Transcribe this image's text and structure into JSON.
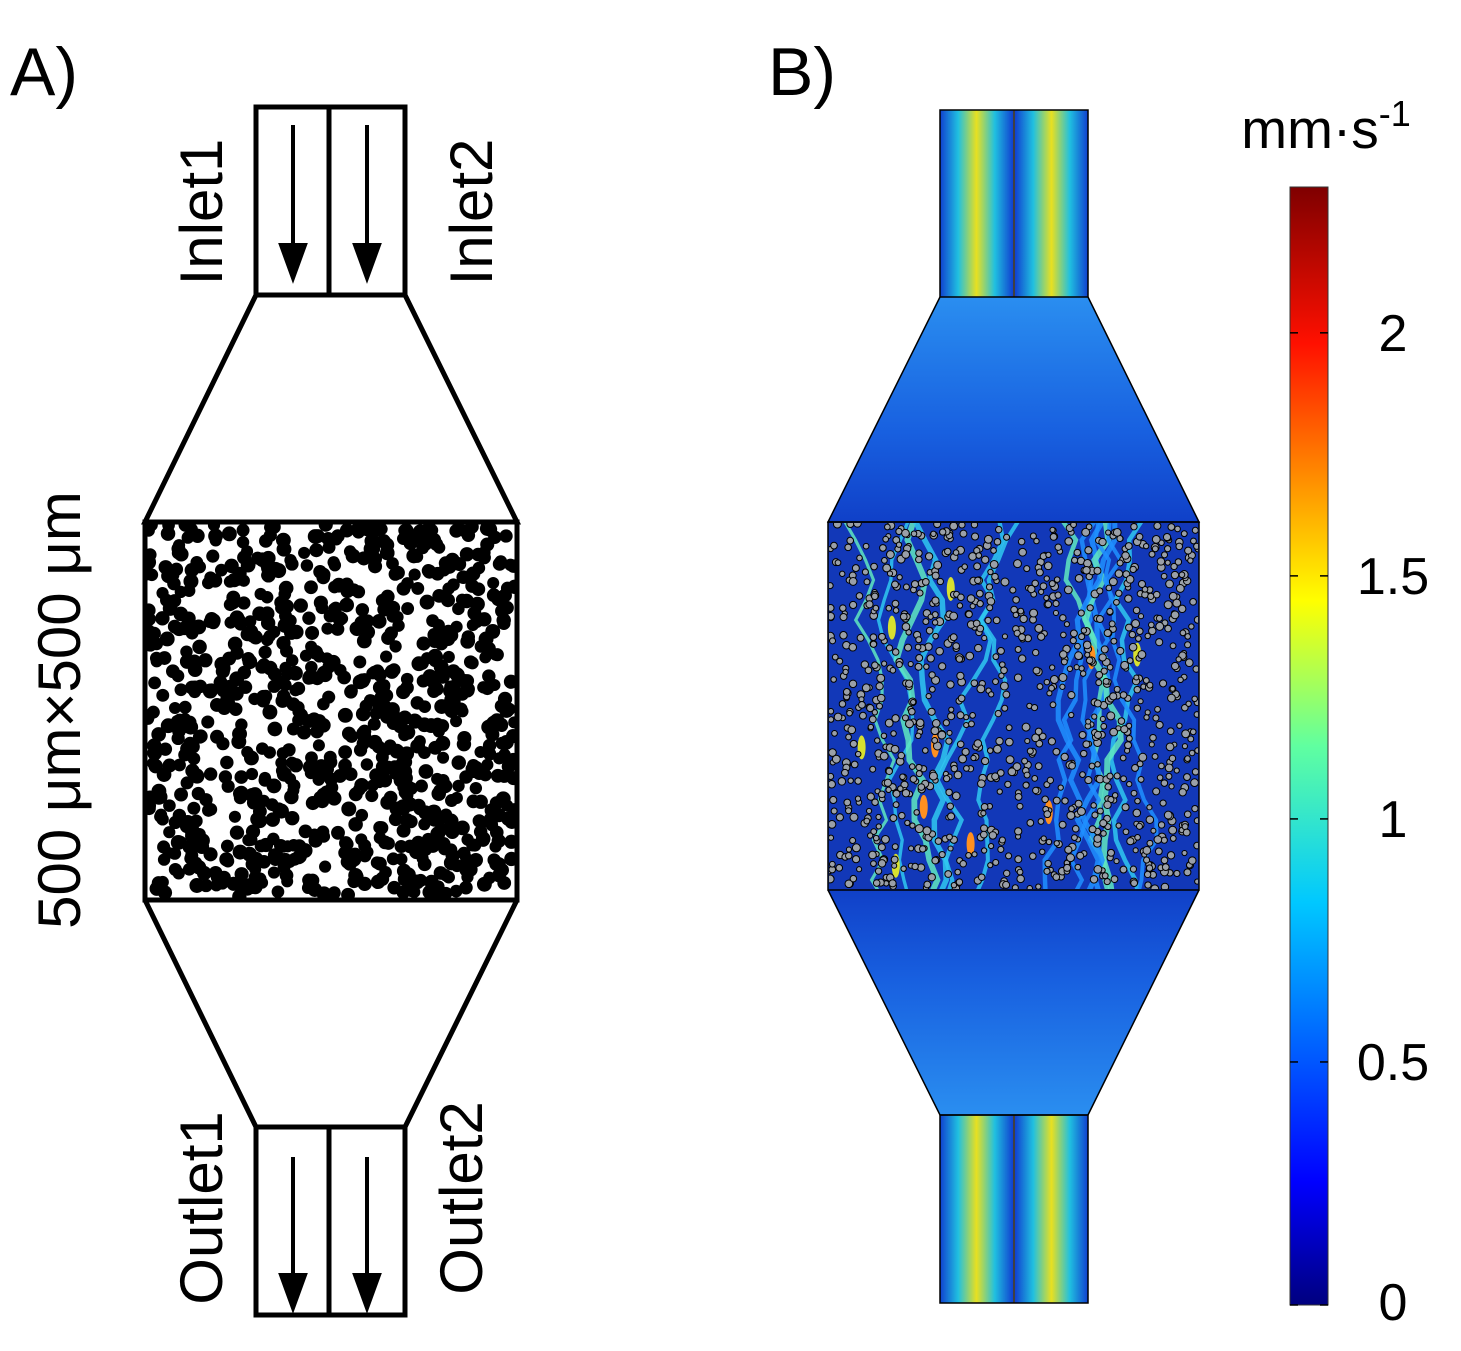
{
  "panel_a": {
    "label": "A)",
    "inlets": [
      "Inlet1",
      "Inlet2"
    ],
    "outlets": [
      "Outlet1",
      "Outlet2"
    ],
    "size_label": "500 μm×500 μm"
  },
  "panel_b": {
    "label": "B)",
    "colorbar": {
      "unit": "mm·s",
      "unit_exponent": "-1",
      "lim": [
        0,
        2.3
      ],
      "ticks": [
        0,
        0.5,
        1,
        1.5,
        2
      ]
    }
  }
}
